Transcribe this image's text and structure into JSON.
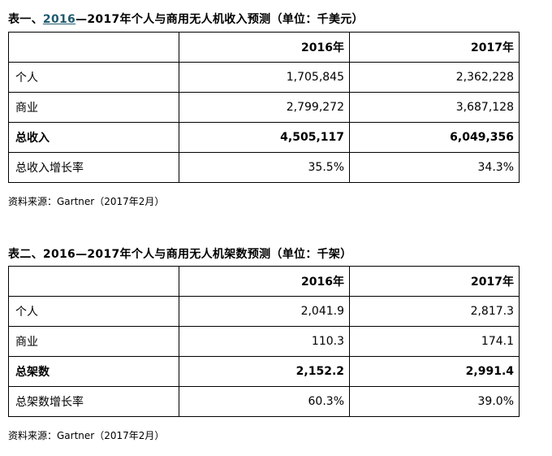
{
  "table1": {
    "caption_prefix": "表一、",
    "caption_link": "2016",
    "caption_rest": "—2017年个人与商用无人机收入预测（单位：千美元）",
    "header": [
      "",
      "2016年",
      "2017年"
    ],
    "rows": [
      {
        "label": "个人",
        "v2016": "1,705,845",
        "v2017": "2,362,228"
      },
      {
        "label": "商业",
        "v2016": "2,799,272",
        "v2017": "3,687,128"
      },
      {
        "label": "总收入",
        "v2016": "4,505,117",
        "v2017": "6,049,356"
      },
      {
        "label": "总收入增长率",
        "v2016": "35.5%",
        "v2017": "34.3%"
      }
    ],
    "source": "资料来源：Gartner（2017年2月）"
  },
  "table2": {
    "caption": "表二、2016—2017年个人与商用无人机架数预测（单位：千架）",
    "header": [
      "",
      "2016年",
      "2017年"
    ],
    "rows": [
      {
        "label": "个人",
        "v2016": "2,041.9",
        "v2017": "2,817.3"
      },
      {
        "label": "商业",
        "v2016": "110.3",
        "v2017": "174.1"
      },
      {
        "label": "总架数",
        "v2016": "2,152.2",
        "v2017": "2,991.4"
      },
      {
        "label": "总架数增长率",
        "v2016": "60.3%",
        "v2017": "39.0%"
      }
    ],
    "source": "资料来源：Gartner（2017年2月）"
  }
}
